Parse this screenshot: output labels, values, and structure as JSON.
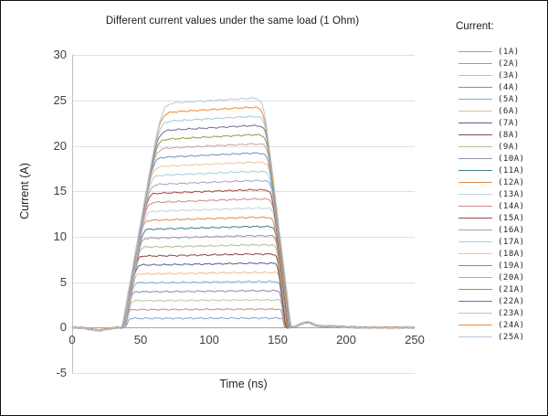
{
  "chart_data": {
    "type": "line",
    "title": "Different current values under the same load (1 Ohm)",
    "xlabel": "Time (ns)",
    "ylabel": "Current (A)",
    "xlim": [
      0,
      250
    ],
    "ylim": [
      -5,
      30
    ],
    "x_ticks": [
      0,
      50,
      100,
      150,
      200,
      250
    ],
    "y_ticks": [
      -5,
      0,
      5,
      10,
      15,
      20,
      25,
      30
    ],
    "grid": "horizontal",
    "legend_title": "Current:",
    "legend_position": "right",
    "waveform": "trapezoidal current pulse, amplitude = nominal current, on from ~40 ns to ~155 ns",
    "pulse_shape": {
      "baseline_A": 0,
      "rise_start_ns": 37,
      "rise_slope_A_per_ns": 0.85,
      "fall_end_ns": 158,
      "fall_slope_A_per_ns": 1.25,
      "plateau_peak_ns": 130,
      "pre_pulse_dip_A": -0.3,
      "pre_pulse_dip_center_ns": 19,
      "post_pulse_bump_A": 0.55,
      "post_pulse_bump_center_ns": 171
    },
    "series": [
      {
        "name": "(1A)",
        "amplitude_A": 1,
        "color": "#85a3cf"
      },
      {
        "name": "(2A)",
        "amplitude_A": 2,
        "color": "#cc8a87"
      },
      {
        "name": "(3A)",
        "amplitude_A": 3,
        "color": "#b5cc9a"
      },
      {
        "name": "(4A)",
        "amplitude_A": 4,
        "color": "#9384b6"
      },
      {
        "name": "(5A)",
        "amplitude_A": 5,
        "color": "#7ab0d7"
      },
      {
        "name": "(6A)",
        "amplitude_A": 6,
        "color": "#f0bd8e"
      },
      {
        "name": "(7A)",
        "amplitude_A": 7,
        "color": "#54678f"
      },
      {
        "name": "(8A)",
        "amplitude_A": 8,
        "color": "#8e4a48"
      },
      {
        "name": "(9A)",
        "amplitude_A": 9,
        "color": "#b2bd92"
      },
      {
        "name": "(10A)",
        "amplitude_A": 10,
        "color": "#9990ab"
      },
      {
        "name": "(11A)",
        "amplitude_A": 11,
        "color": "#3f808d"
      },
      {
        "name": "(12A)",
        "amplitude_A": 12,
        "color": "#dd8e4e"
      },
      {
        "name": "(13A)",
        "amplitude_A": 13,
        "color": "#c3d3e3"
      },
      {
        "name": "(14A)",
        "amplitude_A": 14,
        "color": "#d18b85"
      },
      {
        "name": "(15A)",
        "amplitude_A": 15,
        "color": "#9e4c47"
      },
      {
        "name": "(16A)",
        "amplitude_A": 16,
        "color": "#aba0c5"
      },
      {
        "name": "(17A)",
        "amplitude_A": 17,
        "color": "#a6d1dd"
      },
      {
        "name": "(18A)",
        "amplitude_A": 18,
        "color": "#f4c399"
      },
      {
        "name": "(19A)",
        "amplitude_A": 19,
        "color": "#6b92c4"
      },
      {
        "name": "(20A)",
        "amplitude_A": 20,
        "color": "#c9a3a0"
      },
      {
        "name": "(21A)",
        "amplitude_A": 21,
        "color": "#8aa346"
      },
      {
        "name": "(22A)",
        "amplitude_A": 22,
        "color": "#7b6a9d"
      },
      {
        "name": "(23A)",
        "amplitude_A": 23,
        "color": "#a2cbd8"
      },
      {
        "name": "(24A)",
        "amplitude_A": 24,
        "color": "#ee8b3b"
      },
      {
        "name": "(25A)",
        "amplitude_A": 25,
        "color": "#b3cadf"
      }
    ],
    "colors": {
      "gridline": "#e0e0e0",
      "zero_axis": "#a6a6a6",
      "y_axis_line": "#c0c0c0",
      "tick_text": "#3f3f3f"
    }
  }
}
